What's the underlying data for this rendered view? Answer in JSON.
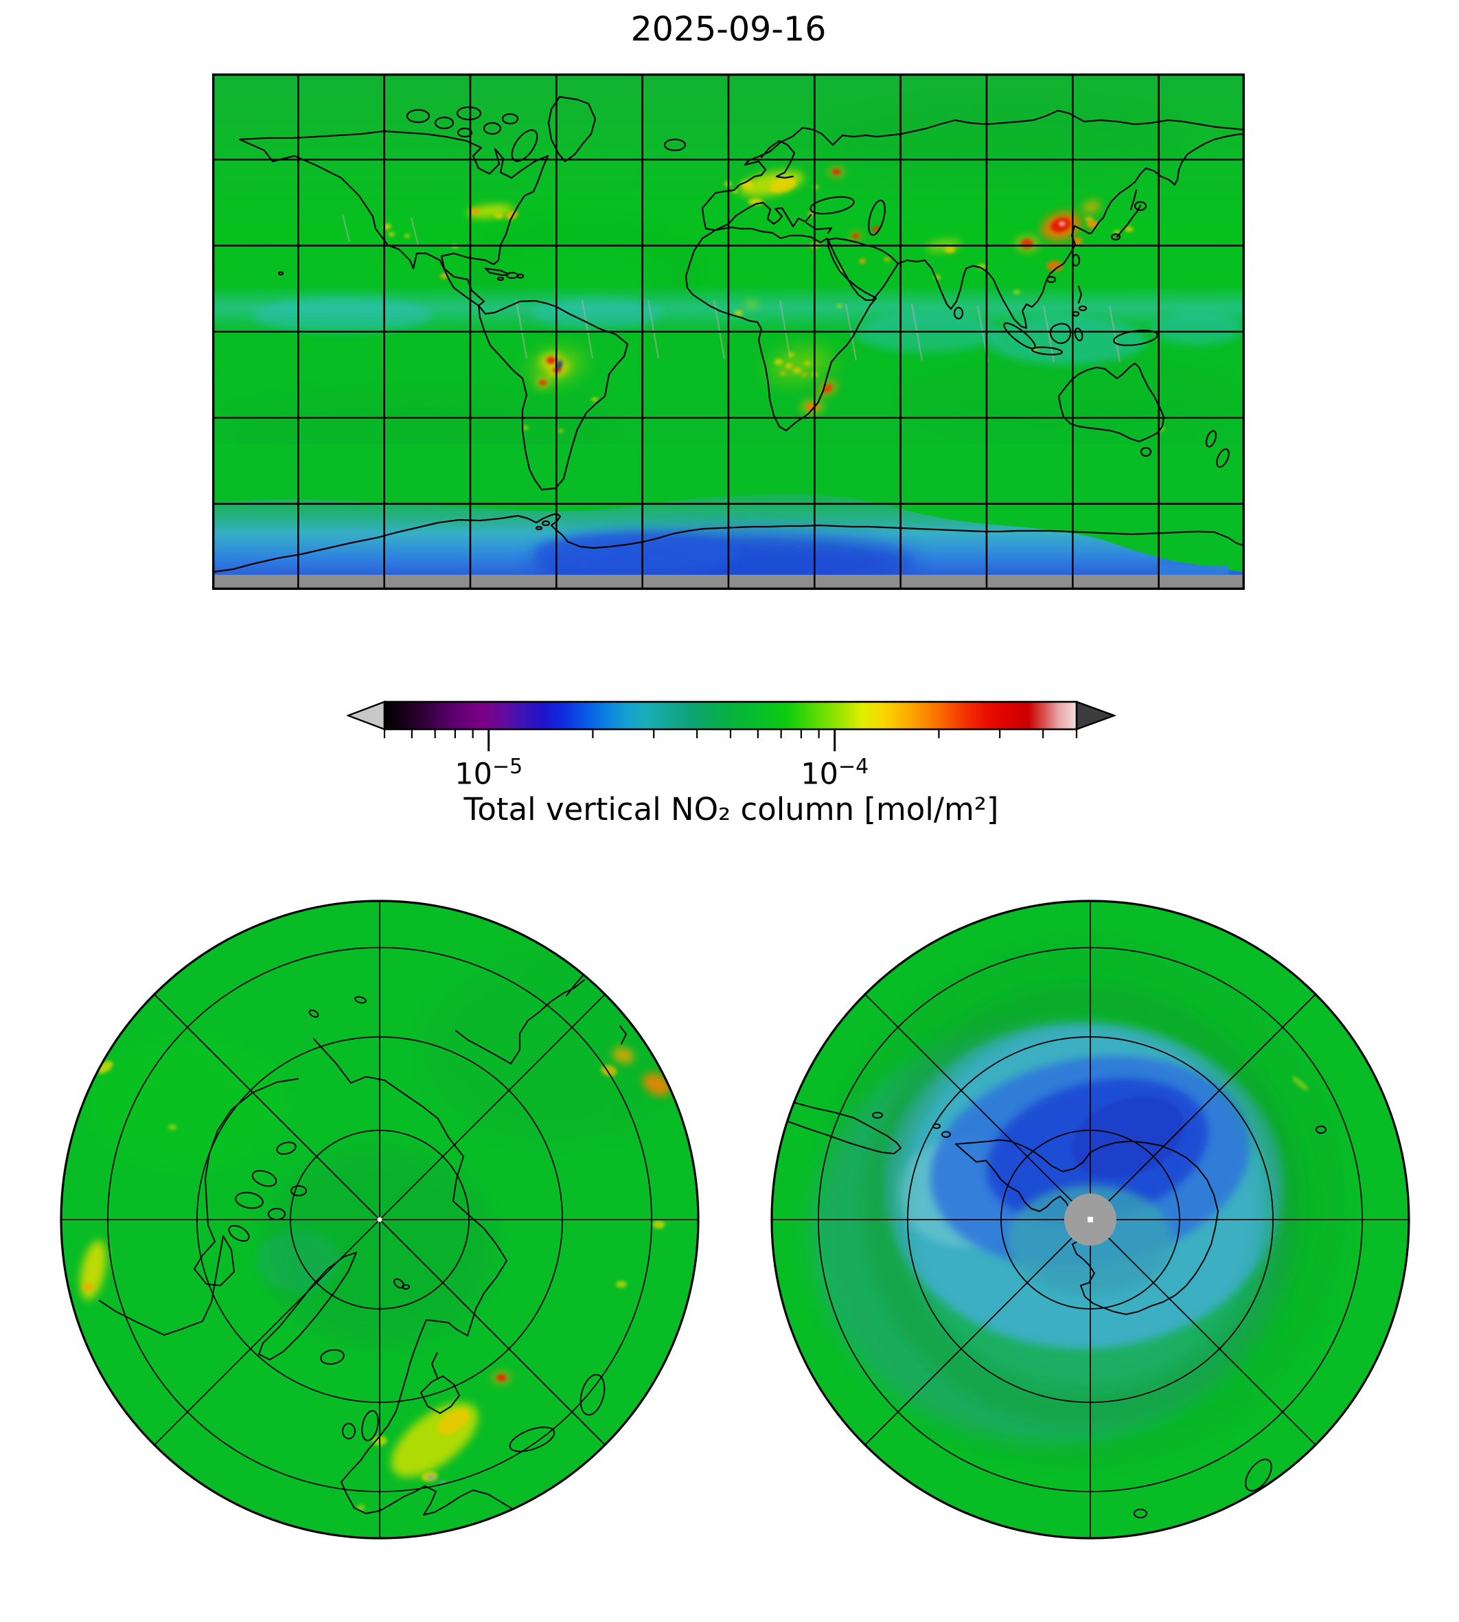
{
  "figure": {
    "title": "2025-09-16",
    "background": "#ffffff"
  },
  "colorbar": {
    "label": "Total vertical NO₂ column [mol/m²]",
    "scale": "log",
    "units": "mol/m²",
    "vmin": 5e-06,
    "vmax": 0.0005,
    "under_arrow_color": "#c8c8c8",
    "over_arrow_color": "#3c3c3c",
    "major_ticks": [
      {
        "value": 1e-05,
        "base": "10",
        "exp": "−5"
      },
      {
        "value": 0.0001,
        "base": "10",
        "exp": "−4"
      }
    ],
    "minor_tick_values": [
      5e-06,
      6e-06,
      7e-06,
      8e-06,
      9e-06,
      2e-05,
      3e-05,
      4e-05,
      5e-05,
      6e-05,
      7e-05,
      8e-05,
      9e-05,
      0.0002,
      0.0003,
      0.0004,
      0.0005
    ],
    "gradient_stops": [
      [
        0,
        "#000000"
      ],
      [
        0.05,
        "#2a0030"
      ],
      [
        0.1,
        "#5c0070"
      ],
      [
        0.14,
        "#7a0084"
      ],
      [
        0.17,
        "#660a9c"
      ],
      [
        0.2,
        "#3c14b4"
      ],
      [
        0.23,
        "#1e14cc"
      ],
      [
        0.26,
        "#0e2ee0"
      ],
      [
        0.29,
        "#0a58e8"
      ],
      [
        0.32,
        "#0c80e0"
      ],
      [
        0.35,
        "#14a0d2"
      ],
      [
        0.38,
        "#18aeb4"
      ],
      [
        0.41,
        "#14a896"
      ],
      [
        0.44,
        "#0ea478"
      ],
      [
        0.47,
        "#0aaa5c"
      ],
      [
        0.5,
        "#08b240"
      ],
      [
        0.54,
        "#06be2a"
      ],
      [
        0.58,
        "#0ccc10"
      ],
      [
        0.62,
        "#52da04"
      ],
      [
        0.66,
        "#a0e400"
      ],
      [
        0.69,
        "#e0ee00"
      ],
      [
        0.72,
        "#f8d800"
      ],
      [
        0.75,
        "#fcb400"
      ],
      [
        0.78,
        "#fc8c00"
      ],
      [
        0.81,
        "#fa6000"
      ],
      [
        0.84,
        "#f43000"
      ],
      [
        0.87,
        "#ea0e00"
      ],
      [
        0.9,
        "#dc0200"
      ],
      [
        0.93,
        "#cc0000"
      ],
      [
        0.955,
        "#d85858"
      ],
      [
        0.975,
        "#e8a8a8"
      ],
      [
        1,
        "#f2dede"
      ]
    ]
  },
  "maps": {
    "world": {
      "projection": "equirectangular",
      "lon_range": [
        -180,
        180
      ],
      "lat_range": [
        -90,
        90
      ],
      "grid_spacing_deg": 30,
      "base_color": "#08bc26",
      "no_data_color": "#8e8e8e"
    },
    "north_polar": {
      "projection": "azimuthal, centered on North Pole",
      "graticule_circle_fractions": [
        0.279,
        0.571,
        0.85
      ],
      "spoke_step_deg": 45
    },
    "south_polar": {
      "projection": "azimuthal, centered on South Pole",
      "graticule_circle_fractions": [
        0.279,
        0.571,
        0.85
      ],
      "spoke_step_deg": 45,
      "polar_night_color": "#9e9e9e"
    }
  },
  "chart_data": {
    "type": "heatmap",
    "title": "2025-09-16",
    "variable": "Total vertical NO₂ column",
    "units": "mol/m²",
    "colorbar_scale": "log",
    "value_range": [
      5e-06,
      0.0005
    ],
    "notes": [
      "Background field is green (~5e-5 mol/m²) over most of the globe",
      "Elevated NO₂ (yellow/orange/red) over eastern China (max, small white core), Europe, eastern US, northern India, Middle East, and biomass-burning regions of South America and southern Africa",
      "Cyan band of lower values along ~2–15°N over the tropical oceans with thin pale sun-glint streaks",
      "Very low values (cyan→deep blue) over the Antarctic polar-vortex region south of ~55°S, deepest near 0–60°E",
      "Gray = no data (polar night): strip south of ~84°S on the world map and disk at the South Pole on the polar plot"
    ],
    "hotspot_format": [
      "lon",
      "lat",
      "rx_px",
      "ry_px",
      "rot_deg",
      "color",
      "opacity",
      "blur"
    ],
    "world_hotspots": [
      [
        -83,
        42,
        34,
        9,
        -6,
        "#c8e000",
        0.9,
        "m"
      ],
      [
        -88.5,
        41.9,
        7,
        5,
        0,
        "#f0a000",
        0.9,
        "s"
      ],
      [
        -75.6,
        40.6,
        9,
        6,
        -20,
        "#f0b000",
        0.9,
        "s"
      ],
      [
        -80,
        40.4,
        6,
        4,
        0,
        "#e8d000",
        0.85,
        "s"
      ],
      [
        -119,
        36.6,
        6,
        4,
        -20,
        "#e0d800",
        0.85,
        "s"
      ],
      [
        -117.5,
        34,
        5,
        3,
        0,
        "#e0d800",
        0.8,
        "s"
      ],
      [
        -112,
        33.4,
        4,
        3,
        0,
        "#dce000",
        0.75,
        "s"
      ],
      [
        -95.4,
        29.8,
        4,
        3,
        0,
        "#dce000",
        0.75,
        "s"
      ],
      [
        -99.1,
        19.4,
        6,
        4,
        0,
        "#f0ac00",
        0.9,
        "s"
      ],
      [
        15,
        51.6,
        48,
        16,
        -12,
        "#cce000",
        0.85,
        "m"
      ],
      [
        19,
        51,
        20,
        10,
        -15,
        "#f0d000",
        0.8,
        "s"
      ],
      [
        6.5,
        51.3,
        9,
        6,
        0,
        "#e8d400",
        0.85,
        "s"
      ],
      [
        -0.1,
        51.5,
        5,
        4,
        0,
        "#e0dc00",
        0.8,
        "s"
      ],
      [
        2.3,
        48.9,
        4,
        3,
        0,
        "#dce000",
        0.75,
        "s"
      ],
      [
        9.5,
        45.3,
        11,
        5,
        0,
        "#e8d400",
        0.85,
        "s"
      ],
      [
        37.6,
        55.7,
        12,
        8,
        0,
        "#f0a000",
        0.6,
        "m"
      ],
      [
        37.6,
        55.7,
        6,
        4,
        0,
        "#ee2000",
        0.95,
        "s"
      ],
      [
        30.5,
        50.4,
        4,
        3,
        0,
        "#dce000",
        0.7,
        "s"
      ],
      [
        28.9,
        41,
        5,
        4,
        0,
        "#f0a800",
        0.8,
        "s"
      ],
      [
        44.4,
        33.3,
        10,
        6,
        0,
        "#f0a000",
        0.6,
        "m"
      ],
      [
        44.4,
        33.3,
        5,
        4,
        0,
        "#ee3000",
        0.9,
        "s"
      ],
      [
        51.4,
        35.7,
        6,
        4,
        0,
        "#ee3000",
        0.9,
        "s"
      ],
      [
        46.7,
        24.6,
        5,
        4,
        0,
        "#f0a000",
        0.85,
        "s"
      ],
      [
        55.3,
        25.2,
        5,
        3,
        0,
        "#f0b400",
        0.8,
        "s"
      ],
      [
        39.2,
        21.5,
        4,
        3,
        0,
        "#e8c400",
        0.8,
        "s"
      ],
      [
        77.2,
        28.6,
        8,
        5,
        0,
        "#f0c000",
        0.9,
        "s"
      ],
      [
        75,
        30,
        26,
        9,
        -8,
        "#c8e000",
        0.55,
        "m"
      ],
      [
        72.8,
        19,
        5,
        3,
        0,
        "#e0d800",
        0.8,
        "s"
      ],
      [
        88.4,
        22.6,
        6,
        4,
        0,
        "#e8d000",
        0.8,
        "s"
      ],
      [
        116,
        36.8,
        30,
        20,
        -18,
        "#f07800",
        0.9,
        "m"
      ],
      [
        115.9,
        37.2,
        15,
        10,
        -18,
        "#e61400",
        0.95,
        "s"
      ],
      [
        116.3,
        37.6,
        5,
        3,
        0,
        "#e8d8d8",
        0.9,
        "s"
      ],
      [
        104.1,
        30.7,
        18,
        12,
        0,
        "#e8c000",
        0.6,
        "m"
      ],
      [
        104.1,
        30.7,
        9,
        7,
        0,
        "#ee2800",
        0.9,
        "s"
      ],
      [
        113.8,
        22.9,
        12,
        8,
        0,
        "#ee7000",
        0.85,
        "s"
      ],
      [
        121.4,
        31.3,
        9,
        6,
        -30,
        "#f08400",
        0.85,
        "s"
      ],
      [
        126.9,
        37.5,
        9,
        6,
        0,
        "#f09400",
        0.9,
        "s"
      ],
      [
        125.7,
        39.2,
        6,
        4,
        0,
        "#f0b800",
        0.8,
        "s"
      ],
      [
        126.5,
        43.5,
        14,
        9,
        -20,
        "#e8ac00",
        0.75,
        "m"
      ],
      [
        139.7,
        35.7,
        6,
        4,
        0,
        "#e8c800",
        0.85,
        "s"
      ],
      [
        135.5,
        34.7,
        5,
        3,
        0,
        "#e0d000",
        0.8,
        "s"
      ],
      [
        100.5,
        13.8,
        5,
        3,
        0,
        "#dce000",
        0.7,
        "s"
      ],
      [
        106.8,
        -6.2,
        5,
        3,
        0,
        "#e0d800",
        0.75,
        "s"
      ],
      [
        25,
        -11.5,
        48,
        22,
        -12,
        "#b4d800",
        0.5,
        "l"
      ],
      [
        17.5,
        -10.5,
        6,
        4,
        0,
        "#e8d000",
        0.85,
        "s"
      ],
      [
        21,
        -12,
        5,
        4,
        0,
        "#f0c800",
        0.85,
        "s"
      ],
      [
        24,
        -13.5,
        6,
        4,
        0,
        "#e8c800",
        0.85,
        "s"
      ],
      [
        27.5,
        -11,
        5,
        3,
        0,
        "#e0d000",
        0.8,
        "s"
      ],
      [
        22,
        -8,
        4,
        3,
        0,
        "#e0d800",
        0.8,
        "s"
      ],
      [
        30,
        -15,
        5,
        3,
        0,
        "#e8c800",
        0.8,
        "s"
      ],
      [
        19,
        -14.5,
        4,
        3,
        0,
        "#f0b400",
        0.8,
        "s"
      ],
      [
        26.5,
        -15,
        4,
        3,
        0,
        "#f0a800",
        0.8,
        "s"
      ],
      [
        34.6,
        -19.8,
        16,
        10,
        -35,
        "#f0a000",
        0.6,
        "m"
      ],
      [
        34.6,
        -19.8,
        8,
        5,
        -35,
        "#ee3800",
        0.9,
        "s"
      ],
      [
        29.2,
        -26.2,
        18,
        11,
        0,
        "#e8c000",
        0.5,
        "m"
      ],
      [
        29.2,
        -26.2,
        10,
        6,
        0,
        "#f07800",
        0.9,
        "s"
      ],
      [
        3.5,
        6.5,
        6,
        4,
        0,
        "#e0d800",
        0.8,
        "s"
      ],
      [
        8,
        9.5,
        10,
        6,
        0,
        "#cce000",
        0.5,
        "m"
      ],
      [
        30.1,
        30,
        7,
        4,
        0,
        "#f0b400",
        0.85,
        "s"
      ],
      [
        38.7,
        9,
        4,
        3,
        0,
        "#e0d800",
        0.7,
        "s"
      ],
      [
        -60,
        -12,
        40,
        22,
        -15,
        "#b4d800",
        0.55,
        "l"
      ],
      [
        -62,
        -10,
        16,
        10,
        -15,
        "#ecd000",
        0.85,
        "m"
      ],
      [
        -59.5,
        -13,
        17,
        10,
        -20,
        "#f0d000",
        0.85,
        "m"
      ],
      [
        -61.8,
        -10,
        7,
        5,
        0,
        "#e61800",
        0.9,
        "s"
      ],
      [
        -59.8,
        -13.4,
        6,
        4,
        0,
        "#e62800",
        0.9,
        "s"
      ],
      [
        -58.9,
        -11.6,
        4,
        7,
        10,
        "#1a2e96",
        0.9,
        "s"
      ],
      [
        -64.7,
        -17.8,
        12,
        8,
        0,
        "#e8c800",
        0.6,
        "m"
      ],
      [
        -64.7,
        -17.8,
        6,
        4,
        0,
        "#e63000",
        0.9,
        "s"
      ],
      [
        -58.4,
        -34.6,
        4,
        3,
        0,
        "#e0d000",
        0.7,
        "s"
      ],
      [
        -46.6,
        -23.6,
        5,
        3,
        0,
        "#dce000",
        0.75,
        "s"
      ],
      [
        -70.7,
        -33.5,
        4,
        3,
        0,
        "#dce000",
        0.7,
        "s"
      ],
      [
        151.2,
        -33.9,
        4,
        3,
        0,
        "#dce000",
        0.6,
        "s"
      ]
    ],
    "north_polar_hotspots": [
      [
        14,
        51,
        75,
        36,
        -38,
        "#cce000",
        0.85,
        "m"
      ],
      [
        20,
        53,
        26,
        14,
        -35,
        "#f0c800",
        0.8,
        "s"
      ],
      [
        11,
        45,
        12,
        7,
        -10,
        "#e8d400",
        0.8,
        "s"
      ],
      [
        0,
        52,
        11,
        7,
        0,
        "#e0dc00",
        0.7,
        "s"
      ],
      [
        -3.7,
        40.4,
        6,
        4,
        0,
        "#e0d800",
        0.6,
        "s"
      ],
      [
        37.6,
        55.7,
        14,
        9,
        0,
        "#f0a000",
        0.6,
        "m"
      ],
      [
        37.6,
        55.7,
        7,
        5,
        0,
        "#ee2000",
        0.95,
        "s"
      ],
      [
        116,
        37,
        22,
        15,
        30,
        "#f08400",
        0.9,
        "m"
      ],
      [
        124,
        39.5,
        16,
        11,
        20,
        "#f0a400",
        0.85,
        "m"
      ],
      [
        123,
        43,
        12,
        8,
        15,
        "#e8b800",
        0.8,
        "s"
      ],
      [
        -80,
        40,
        17,
        44,
        12,
        "#dfe000",
        0.85,
        "m"
      ],
      [
        -77,
        38.5,
        8,
        6,
        0,
        "#f0a800",
        0.8,
        "s"
      ],
      [
        -119,
        36,
        13,
        7,
        -35,
        "#e0d800",
        0.8,
        "s"
      ],
      [
        89,
        42,
        9,
        6,
        0,
        "#e0d800",
        0.75,
        "s"
      ],
      [
        75,
        47,
        8,
        5,
        0,
        "#e0d800",
        0.7,
        "s"
      ],
      [
        -114,
        51,
        6,
        4,
        0,
        "#dce000",
        0.6,
        "s"
      ],
      [
        11.3,
        44.8,
        6,
        4,
        0,
        "#9aa0a0",
        0.9,
        "s"
      ],
      [
        13.5,
        43.5,
        4,
        3,
        0,
        "#9aa0a0",
        0.85,
        "s"
      ]
    ],
    "south_polar_hotspots": [
      [
        57,
        -47,
        15,
        4,
        40,
        "#d0e000",
        0.5,
        "s"
      ]
    ]
  }
}
